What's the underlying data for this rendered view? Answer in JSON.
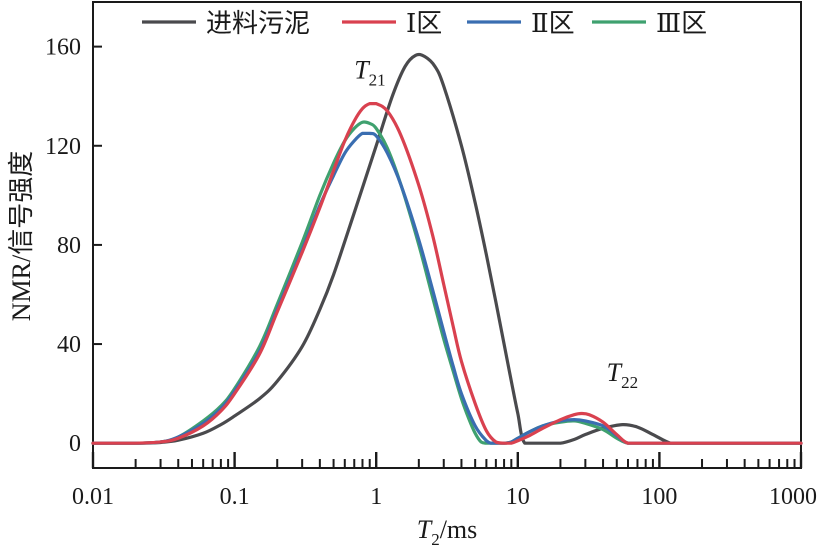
{
  "chart_data": {
    "type": "line",
    "title": "",
    "xlabel_main": "T",
    "xlabel_sub": "2",
    "xlabel_unit": "/ms",
    "ylabel": "NMR/信号强度",
    "x_scale": "log",
    "xlim": [
      0.01,
      1000
    ],
    "ylim": [
      -10,
      178
    ],
    "x_ticks": [
      0.01,
      0.1,
      1,
      10,
      100,
      1000
    ],
    "x_tick_labels": [
      "0.01",
      "0.1",
      "1",
      "10",
      "100",
      "1000"
    ],
    "y_ticks": [
      0,
      40,
      80,
      120,
      160
    ],
    "y_tick_labels": [
      "0",
      "40",
      "80",
      "120",
      "160"
    ],
    "legend_position": "top",
    "series": [
      {
        "name": "进料污泥",
        "color": "#4a4a4d",
        "x": [
          0.01,
          0.02,
          0.03,
          0.04,
          0.06,
          0.08,
          0.1,
          0.15,
          0.2,
          0.3,
          0.4,
          0.5,
          0.7,
          1.0,
          1.3,
          1.6,
          1.9,
          2.2,
          2.6,
          3.0,
          4.0,
          5.0,
          6.0,
          7.0,
          8.0,
          9.0,
          10.0,
          11.2,
          15,
          20,
          25,
          30,
          40,
          55,
          70,
          90,
          120,
          150,
          200,
          300,
          500,
          1000
        ],
        "values": [
          0,
          0,
          0.3,
          1.2,
          4,
          7.5,
          11,
          18,
          25,
          39,
          54,
          68,
          93,
          120,
          140,
          152,
          156.5,
          156,
          152,
          144,
          120,
          97,
          76,
          57,
          40,
          25,
          12,
          0,
          0,
          0,
          1.5,
          3.5,
          6,
          7.5,
          6.5,
          3.5,
          0,
          0,
          0,
          0,
          0,
          0
        ]
      },
      {
        "name": "Ⅰ区",
        "color": "#d9414f",
        "x": [
          0.01,
          0.02,
          0.03,
          0.04,
          0.06,
          0.08,
          0.1,
          0.15,
          0.2,
          0.3,
          0.4,
          0.5,
          0.6,
          0.7,
          0.8,
          0.9,
          1.0,
          1.2,
          1.5,
          2.0,
          2.5,
          3.0,
          3.5,
          4.0,
          5.0,
          6.0,
          7.0,
          8.0,
          9.0,
          10,
          12,
          15,
          20,
          25,
          28,
          32,
          40,
          50,
          60,
          80,
          100,
          200,
          500,
          1000
        ],
        "values": [
          0,
          0,
          0.5,
          2,
          7,
          13,
          20,
          36,
          53,
          77,
          95,
          110,
          122,
          130,
          135,
          137,
          137,
          134,
          124,
          104,
          84,
          64,
          47,
          33,
          16,
          5,
          0.5,
          0,
          0,
          1,
          3,
          6,
          9.5,
          11.5,
          12,
          11.5,
          8.5,
          3.5,
          0,
          0,
          0,
          0,
          0,
          0
        ]
      },
      {
        "name": "Ⅱ区",
        "color": "#3a6eb1",
        "x": [
          0.01,
          0.02,
          0.03,
          0.04,
          0.06,
          0.08,
          0.1,
          0.15,
          0.2,
          0.3,
          0.4,
          0.5,
          0.6,
          0.7,
          0.8,
          0.9,
          1.0,
          1.2,
          1.5,
          2.0,
          2.5,
          3.0,
          3.5,
          4.0,
          5.0,
          6.0,
          6.5,
          7.0,
          8.0,
          9.0,
          10,
          12,
          15,
          20,
          25,
          30,
          40,
          50,
          60,
          80,
          100,
          200,
          500,
          1000
        ],
        "values": [
          0,
          0,
          0.5,
          2.5,
          8,
          14,
          21,
          37,
          54,
          78,
          96,
          108,
          117,
          122,
          125,
          125,
          124,
          117,
          104,
          82,
          62,
          45,
          31,
          20,
          7,
          1,
          0,
          0,
          0,
          0.5,
          2,
          4.5,
          7,
          9,
          9.5,
          9,
          7,
          3,
          0,
          0,
          0,
          0,
          0,
          0
        ]
      },
      {
        "name": "Ⅲ区",
        "color": "#3fa16f",
        "x": [
          0.01,
          0.02,
          0.03,
          0.04,
          0.06,
          0.08,
          0.1,
          0.15,
          0.2,
          0.3,
          0.4,
          0.5,
          0.6,
          0.7,
          0.8,
          0.9,
          1.0,
          1.2,
          1.5,
          2.0,
          2.5,
          3.0,
          3.5,
          4.0,
          4.5,
          5.0,
          5.5,
          6.0,
          7.0,
          8.0,
          9.0,
          10,
          12,
          15,
          20,
          25,
          30,
          40,
          50,
          60,
          80,
          100,
          200,
          500,
          1000
        ],
        "values": [
          0,
          0,
          0.5,
          2.5,
          9,
          15,
          22,
          39,
          56,
          81,
          100,
          113,
          122,
          127,
          129.5,
          129,
          127,
          119,
          104,
          80,
          59,
          42,
          29,
          18,
          10,
          4,
          0.5,
          0,
          0,
          0,
          0.5,
          2,
          4.5,
          7,
          8.5,
          9,
          8,
          5.5,
          2,
          0,
          0,
          0,
          0,
          0,
          0
        ]
      }
    ],
    "annotations": [
      {
        "main": "T",
        "sub": "21",
        "x": 1.0,
        "y": 152
      },
      {
        "main": "T",
        "sub": "22",
        "x": 55,
        "y": 26
      }
    ]
  }
}
